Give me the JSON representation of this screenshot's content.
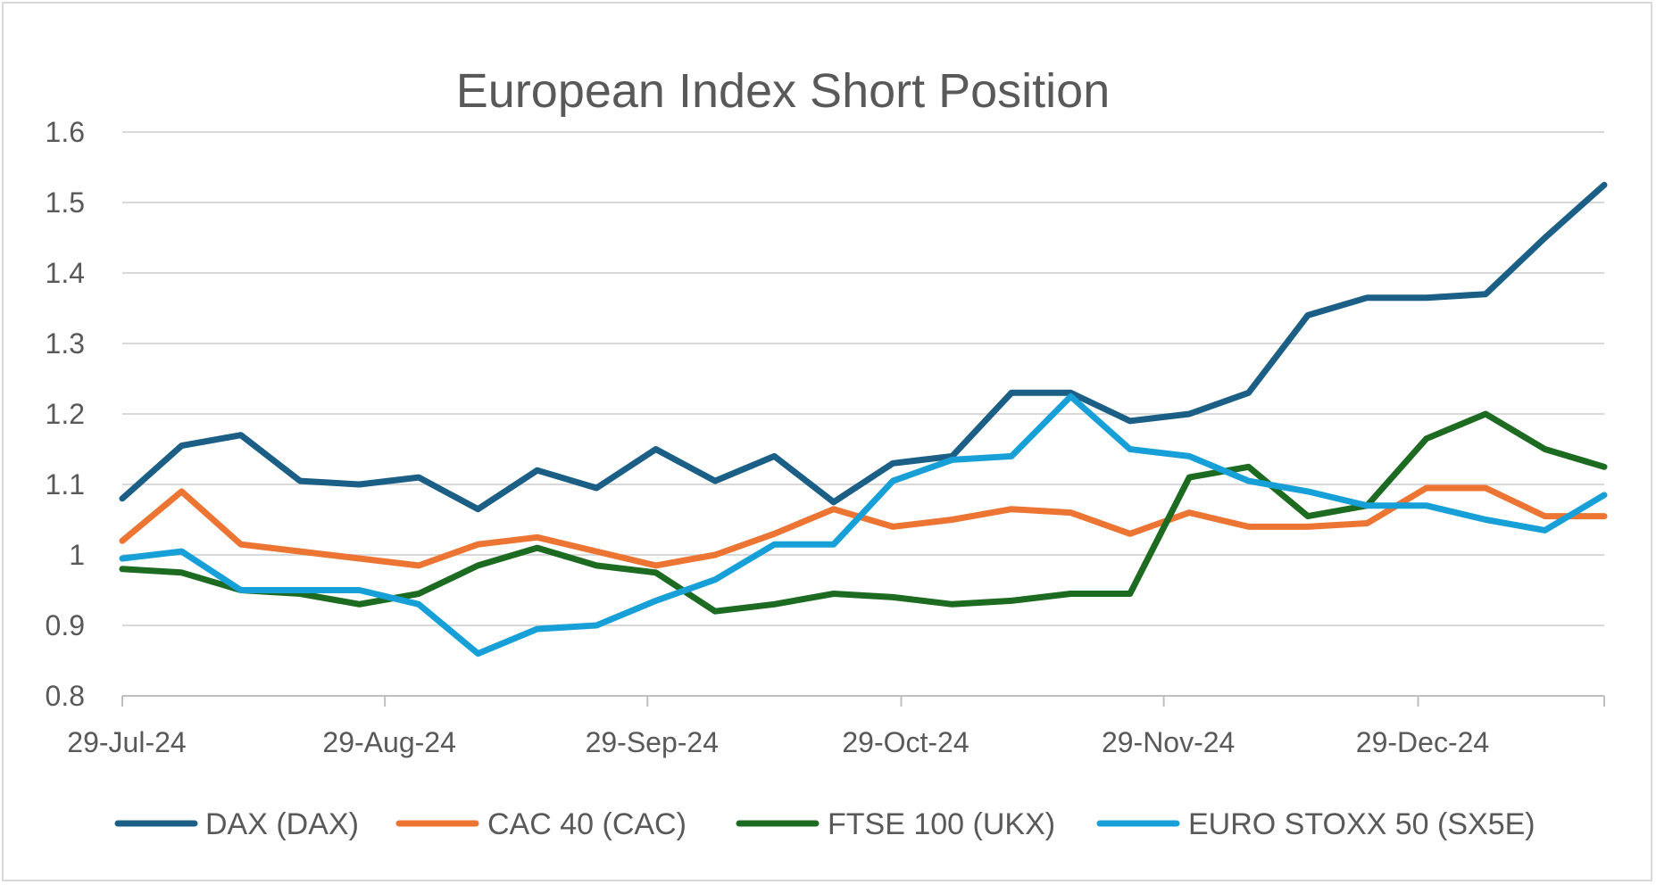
{
  "chart_data": {
    "type": "line",
    "title": "European Index Short Position",
    "xlabel": "",
    "ylabel": "",
    "ylim": [
      0.8,
      1.6
    ],
    "yticks": [
      "0.8",
      "0.9",
      "1",
      "1.1",
      "1.2",
      "1.3",
      "1.4",
      "1.5",
      "1.6"
    ],
    "x_tick_labels": [
      "29-Jul-24",
      "29-Aug-24",
      "29-Sep-24",
      "29-Oct-24",
      "29-Nov-24",
      "29-Dec-24"
    ],
    "x_tick_positions": [
      0,
      4.43,
      8.86,
      13.14,
      17.57,
      21.86
    ],
    "grid": true,
    "legend_position": "bottom",
    "series": [
      {
        "name": "DAX (DAX)",
        "color": "#1b5f86",
        "values": [
          1.08,
          1.155,
          1.17,
          1.105,
          1.1,
          1.11,
          1.065,
          1.12,
          1.095,
          1.15,
          1.105,
          1.14,
          1.075,
          1.13,
          1.14,
          1.23,
          1.23,
          1.19,
          1.2,
          1.23,
          1.34,
          1.365,
          1.365,
          1.37,
          1.45,
          1.525
        ]
      },
      {
        "name": "CAC 40 (CAC)",
        "color": "#ed7533",
        "values": [
          1.02,
          1.09,
          1.015,
          1.005,
          0.995,
          0.985,
          1.015,
          1.025,
          1.005,
          0.985,
          1.0,
          1.03,
          1.065,
          1.04,
          1.05,
          1.065,
          1.06,
          1.03,
          1.06,
          1.04,
          1.04,
          1.045,
          1.095,
          1.095,
          1.055,
          1.055
        ]
      },
      {
        "name": "FTSE 100 (UKX)",
        "color": "#1c6b21",
        "values": [
          0.98,
          0.975,
          0.95,
          0.945,
          0.93,
          0.945,
          0.985,
          1.01,
          0.985,
          0.975,
          0.92,
          0.93,
          0.945,
          0.94,
          0.93,
          0.935,
          0.945,
          0.945,
          1.11,
          1.125,
          1.055,
          1.07,
          1.165,
          1.2,
          1.15,
          1.125
        ]
      },
      {
        "name": "EURO STOXX 50 (SX5E)",
        "color": "#17a0d8",
        "values": [
          0.995,
          1.005,
          0.95,
          0.95,
          0.95,
          0.93,
          0.86,
          0.895,
          0.9,
          0.935,
          0.965,
          1.015,
          1.015,
          1.105,
          1.135,
          1.14,
          1.225,
          1.15,
          1.14,
          1.105,
          1.09,
          1.07,
          1.07,
          1.05,
          1.035,
          1.085
        ]
      }
    ]
  }
}
